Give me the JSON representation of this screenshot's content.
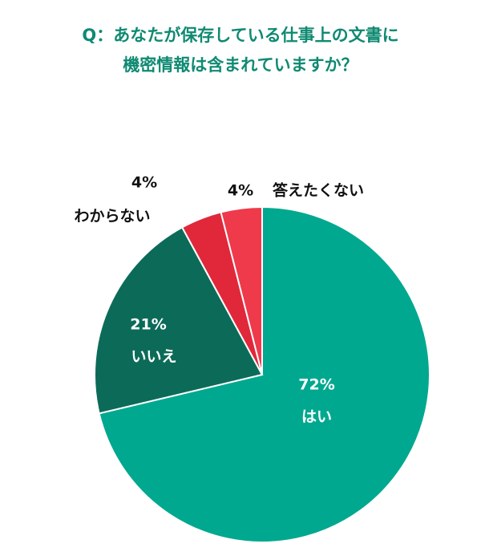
{
  "chart_data": {
    "type": "pie",
    "title": [
      "Q：あなたが保存している仕事上の文書に",
      "機密情報は含まれていますか？"
    ],
    "categories": [
      "はい",
      "いいえ",
      "わからない",
      "答えたくない"
    ],
    "values": [
      72,
      21,
      4,
      4
    ],
    "value_labels": [
      "72%",
      "21%",
      "4%",
      "4%"
    ],
    "colors": [
      "#00a88f",
      "#0b6b58",
      "#e0283a",
      "#ee3a4b"
    ]
  }
}
